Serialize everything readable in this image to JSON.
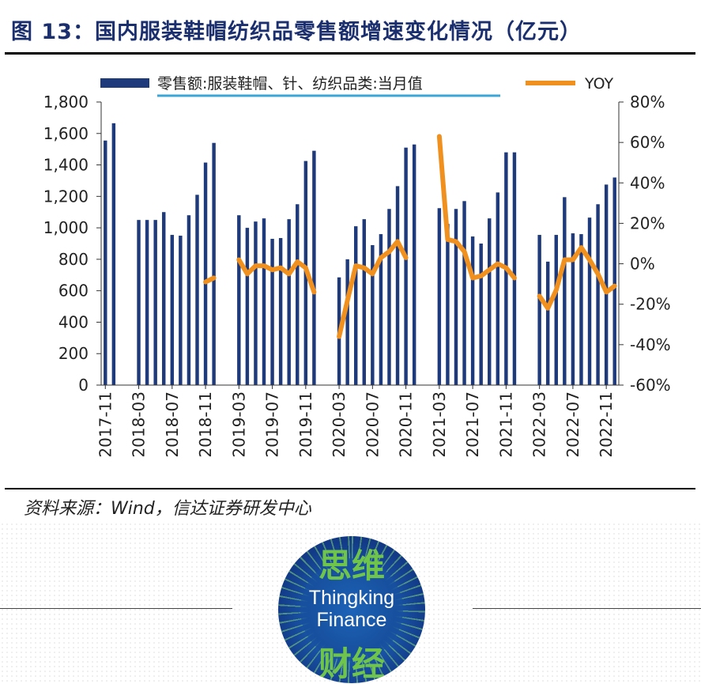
{
  "figure": {
    "title": "图 13：国内服装鞋帽纺织品零售额增速变化情况（亿元）",
    "source": "资料来源：Wind，信达证券研发中心"
  },
  "colors": {
    "bar": "#1f3a7a",
    "line": "#f0901e",
    "legend_underline": "#3aa6d8"
  },
  "chart_data": {
    "type": "bar+line",
    "title": "",
    "legend_position": "top",
    "x": [
      "2017-11",
      "2017-12",
      "2018-01",
      "2018-02",
      "2018-03",
      "2018-04",
      "2018-05",
      "2018-06",
      "2018-07",
      "2018-08",
      "2018-09",
      "2018-10",
      "2018-11",
      "2018-12",
      "2019-01",
      "2019-02",
      "2019-03",
      "2019-04",
      "2019-05",
      "2019-06",
      "2019-07",
      "2019-08",
      "2019-09",
      "2019-10",
      "2019-11",
      "2019-12",
      "2020-01",
      "2020-02",
      "2020-03",
      "2020-04",
      "2020-05",
      "2020-06",
      "2020-07",
      "2020-08",
      "2020-09",
      "2020-10",
      "2020-11",
      "2020-12",
      "2021-01",
      "2021-02",
      "2021-03",
      "2021-04",
      "2021-05",
      "2021-06",
      "2021-07",
      "2021-08",
      "2021-09",
      "2021-10",
      "2021-11",
      "2021-12",
      "2022-01",
      "2022-02",
      "2022-03",
      "2022-04",
      "2022-05",
      "2022-06",
      "2022-07",
      "2022-08",
      "2022-09",
      "2022-10",
      "2022-11",
      "2022-12"
    ],
    "x_tick_labels": [
      "2017-11",
      "2018-03",
      "2018-07",
      "2018-11",
      "2019-03",
      "2019-07",
      "2019-11",
      "2020-03",
      "2020-07",
      "2020-11",
      "2021-03",
      "2021-07",
      "2021-11",
      "2022-03",
      "2022-07",
      "2022-11"
    ],
    "series": [
      {
        "name": "零售额:服装鞋帽、针、纺织品类:当月值",
        "type": "bar",
        "axis": "left",
        "values": [
          1555,
          1665,
          null,
          null,
          1050,
          1050,
          1050,
          1100,
          955,
          950,
          1080,
          1210,
          1415,
          1540,
          null,
          null,
          1080,
          1000,
          1040,
          1060,
          930,
          935,
          1055,
          1150,
          1425,
          1490,
          null,
          null,
          685,
          800,
          1010,
          1055,
          890,
          960,
          1120,
          1265,
          1510,
          1530,
          null,
          null,
          1125,
          1025,
          1120,
          1170,
          945,
          900,
          1060,
          1225,
          1480,
          1480,
          null,
          null,
          955,
          785,
          955,
          1195,
          965,
          960,
          1065,
          1150,
          1275,
          1320
        ]
      },
      {
        "name": "YOY",
        "type": "line",
        "axis": "right",
        "values": [
          null,
          null,
          null,
          null,
          null,
          null,
          null,
          null,
          null,
          null,
          null,
          null,
          -9,
          -7,
          null,
          null,
          2,
          -5,
          -1,
          -1,
          -3,
          -2,
          -5,
          1,
          -2,
          -14,
          null,
          null,
          -36,
          -18,
          -1,
          -2,
          -5,
          3,
          6,
          11,
          3,
          null,
          null,
          null,
          63,
          12,
          11,
          6,
          -7,
          -6,
          -3,
          0,
          -2,
          -7,
          null,
          null,
          -16,
          -22,
          -13,
          2,
          2,
          8,
          2,
          -5,
          -14,
          -11
        ]
      }
    ],
    "y_left": {
      "ticks": [
        "0",
        "200",
        "400",
        "600",
        "800",
        "1,000",
        "1,200",
        "1,400",
        "1,600",
        "1,800"
      ],
      "range": [
        0,
        1800
      ]
    },
    "y_right": {
      "ticks": [
        "-60%",
        "-40%",
        "-20%",
        "0%",
        "20%",
        "40%",
        "60%",
        "80%"
      ],
      "range": [
        -60,
        80
      ]
    }
  }
}
